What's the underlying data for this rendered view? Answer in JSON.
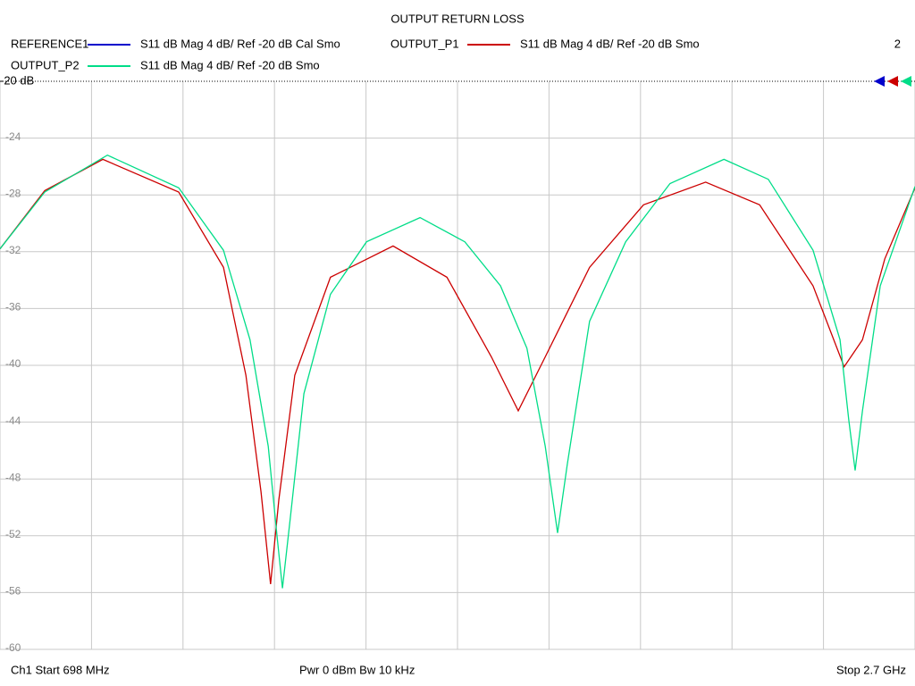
{
  "chart_data": {
    "type": "line",
    "title": "OUTPUT RETURN LOSS",
    "trace_count": "2",
    "footer": {
      "start": "Ch1  Start  698 MHz",
      "power": "Pwr  0 dBm  Bw  10 kHz",
      "stop": "Stop  2.7 GHz"
    },
    "xlim": [
      698,
      2700
    ],
    "xticks": [
      698,
      898.2,
      1098.4,
      1298.6,
      1498.8,
      1699,
      1899.2,
      2099.4,
      2299.6,
      2499.8,
      2700
    ],
    "ylim": [
      -60,
      -20
    ],
    "yticks": [
      {
        "value": -20,
        "label": "-20 dB"
      },
      -24,
      -28,
      -32,
      -36,
      -40,
      -44,
      -48,
      -52,
      -56,
      -60
    ],
    "grid": true,
    "series": [
      {
        "name": "REFERENCE1",
        "color": "#0000cc",
        "description": "S11  dB Mag  4 dB/ Ref -20 dB  Cal Smo"
      },
      {
        "name": "OUTPUT_P1",
        "color": "#cc0000",
        "description": "S11  dB Mag  4 dB/ Ref -20 dB  Smo",
        "x": [
          698,
          796,
          923,
          1089,
          1187,
          1236,
          1269,
          1290,
          1308,
          1343,
          1421,
          1558,
          1676,
          1773,
          1832,
          1891,
          1988,
          2106,
          2242,
          2360,
          2477,
          2545,
          2585,
          2634,
          2700
        ],
        "values": [
          -31.8,
          -27.7,
          -25.5,
          -27.8,
          -33.1,
          -40.7,
          -48.9,
          -55.4,
          -49.5,
          -40.7,
          -33.8,
          -31.6,
          -33.8,
          -39.4,
          -43.2,
          -39.4,
          -33.1,
          -28.7,
          -27.1,
          -28.7,
          -34.4,
          -40.1,
          -38.2,
          -32.5,
          -27.5
        ]
      },
      {
        "name": "OUTPUT_P2",
        "color": "#00dd88",
        "description": "S11  dB Mag  4 dB/ Ref -20 dB  Smo",
        "x": [
          698,
          796,
          933,
          1089,
          1187,
          1245,
          1285,
          1304,
          1316,
          1333,
          1363,
          1421,
          1500,
          1617,
          1715,
          1793,
          1851,
          1891,
          1918,
          1939,
          1988,
          2067,
          2164,
          2282,
          2379,
          2477,
          2536,
          2555,
          2569,
          2585,
          2624,
          2700
        ],
        "values": [
          -31.8,
          -27.8,
          -25.2,
          -27.5,
          -31.9,
          -38.2,
          -45.7,
          -52,
          -55.7,
          -50.8,
          -42,
          -35,
          -31.3,
          -29.6,
          -31.3,
          -34.4,
          -38.8,
          -45.7,
          -51.8,
          -47,
          -36.9,
          -31.3,
          -27.2,
          -25.5,
          -26.9,
          -31.9,
          -38.2,
          -43.8,
          -47.4,
          -43.2,
          -34.4,
          -27.4
        ]
      }
    ]
  }
}
